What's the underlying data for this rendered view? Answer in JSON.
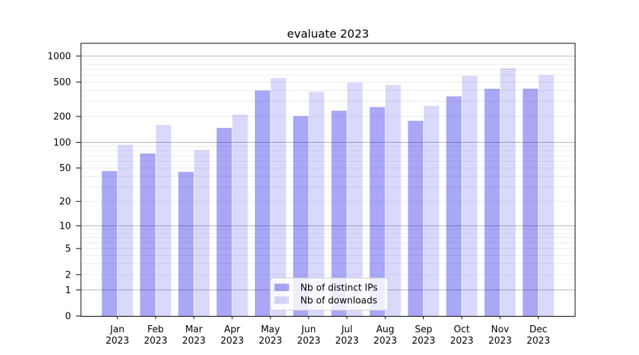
{
  "chart_data": {
    "type": "bar",
    "title": "evaluate 2023",
    "categories": [
      "Jan",
      "Feb",
      "Mar",
      "Apr",
      "May",
      "Jun",
      "Jul",
      "Aug",
      "Sep",
      "Oct",
      "Nov",
      "Dec"
    ],
    "x_tick_second_line": "2023",
    "series": [
      {
        "name": "Nb of distinct IPs",
        "color": "rgba(0,0,230,0.34)",
        "values": [
          46,
          74,
          45,
          147,
          400,
          202,
          233,
          257,
          178,
          342,
          419,
          420
        ]
      },
      {
        "name": "Nb of downloads",
        "color": "rgba(0,0,230,0.15)",
        "values": [
          94,
          159,
          81,
          210,
          557,
          386,
          494,
          464,
          265,
          592,
          725,
          602
        ]
      }
    ],
    "yscale": "log1p",
    "y_ticks": [
      0,
      1,
      2,
      5,
      10,
      20,
      50,
      100,
      200,
      500,
      1000
    ],
    "ylim": [
      0,
      1400
    ],
    "grid": true,
    "legend_position": "lower-center",
    "colors": {
      "major_grid": "#b3b3b3",
      "minor_grid": "#e9e9e9",
      "axis": "#000000",
      "legend_border": "#cccccc",
      "legend_bg": "rgba(255,255,255,0.8)"
    }
  }
}
